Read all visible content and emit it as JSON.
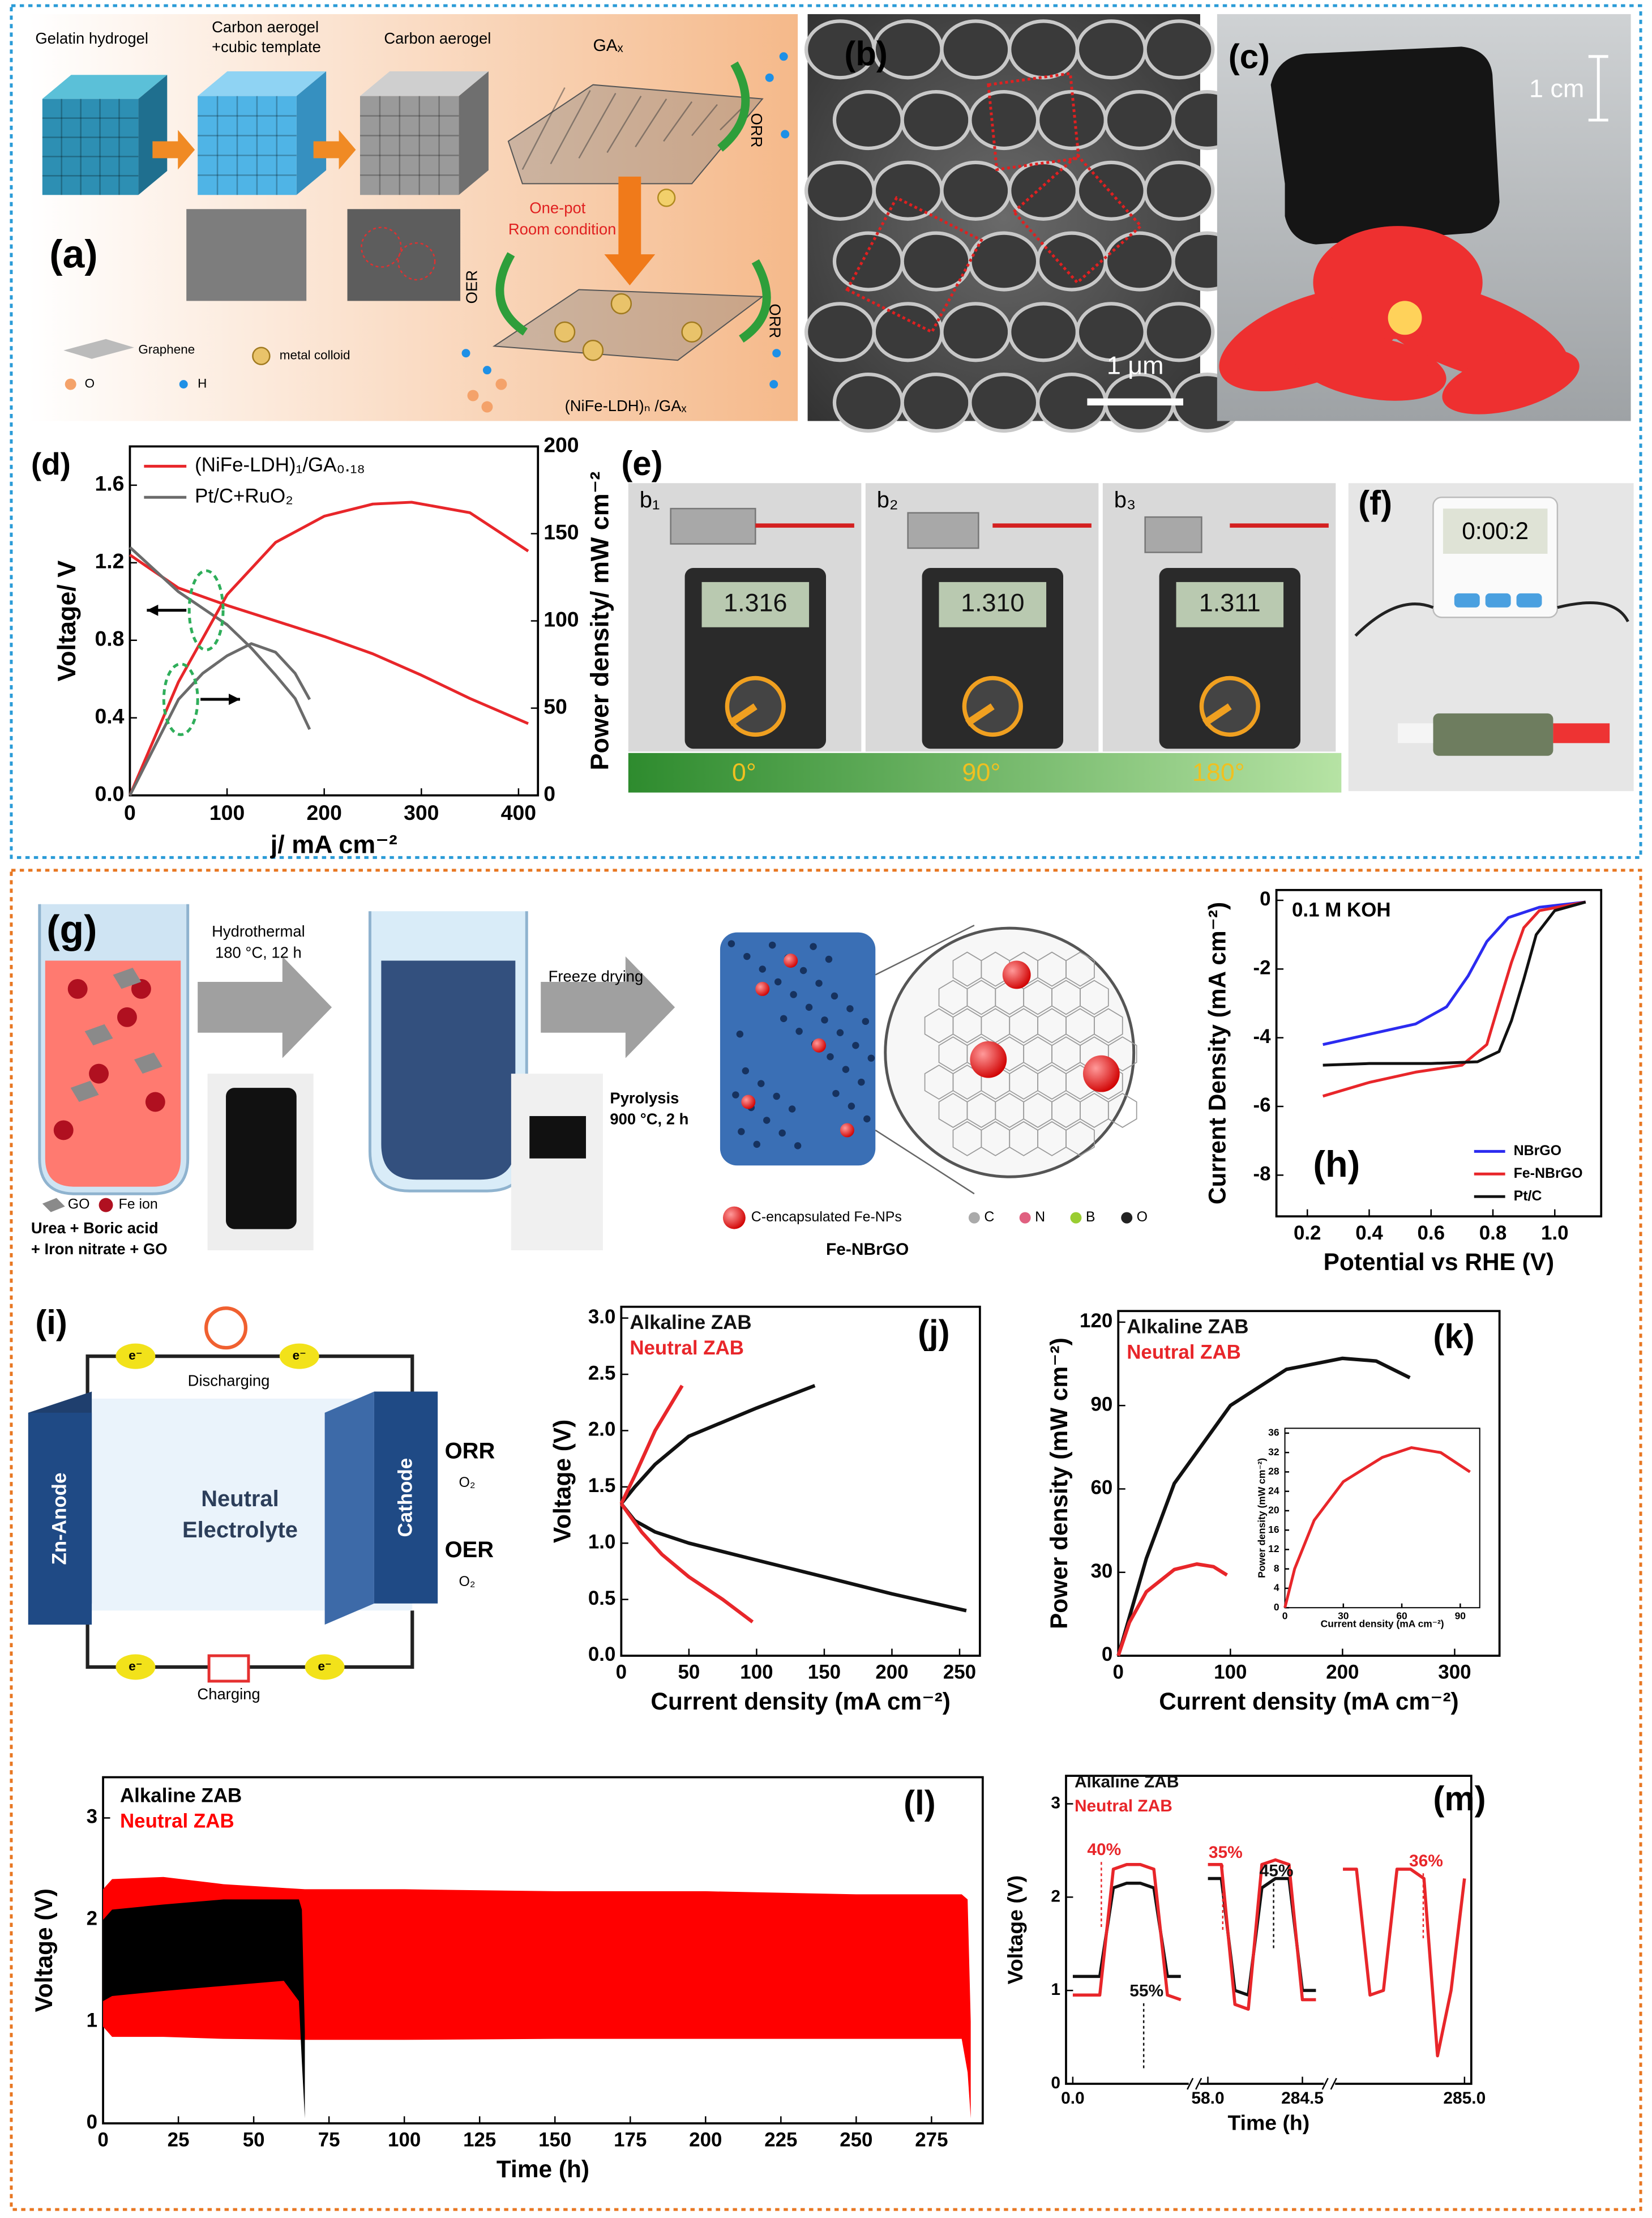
{
  "diagrams": {
    "a": {
      "label": "(a)",
      "gelatin": "Gelatin hydrogel",
      "template": [
        "Carbon aerogel",
        "+cubic template"
      ],
      "aerogel": "Carbon aerogel",
      "ga": "GAₓ",
      "orr_top": "ORR",
      "one_pot": [
        "One-pot",
        "Room condition"
      ],
      "oer": "OER",
      "orr_bottom": "ORR",
      "product": "(NiFe-LDH)ₙ /GAₓ",
      "legend": [
        "Graphene",
        "metal colloid",
        "O",
        "H"
      ]
    },
    "b": {
      "label": "(b)",
      "scale": "1 μm"
    },
    "c": {
      "label": "(c)",
      "scale": "1 cm"
    },
    "e": {
      "label": "(e)",
      "views": [
        "b₁",
        "b₂",
        "b₃"
      ],
      "readings": [
        "1.316",
        "1.310",
        "1.311"
      ],
      "angles": [
        "0°",
        "90°",
        "180°"
      ]
    },
    "f": {
      "label": "(f)",
      "timer": "0:00:2"
    },
    "g": {
      "label": "(g)",
      "step1": [
        "Hydrothermal",
        "180 °C, 12 h"
      ],
      "step2": "Freeze drying",
      "step3": [
        "Pyrolysis",
        "900 °C, 2 h"
      ],
      "legend_left": [
        "GO",
        "Fe ion"
      ],
      "precursors": [
        "Urea + Boric acid",
        "+ Iron nitrate + GO"
      ],
      "legend_right": [
        "C-encapsulated Fe-NPs",
        "C",
        "N",
        "B",
        "O"
      ],
      "product": "Fe-NBrGO"
    },
    "i": {
      "label": "(i)",
      "discharging": "Discharging",
      "charging": "Charging",
      "anode": "Zn-Anode",
      "electrolyte": [
        "Neutral",
        "Electrolyte"
      ],
      "cathode": "Cathode",
      "orr": "ORR",
      "oer": "OER",
      "o2": [
        "O₂",
        "O₂"
      ],
      "electron": [
        "e⁻",
        "e⁻",
        "e⁻",
        "e⁻"
      ]
    }
  },
  "chart_data": [
    {
      "type": "line",
      "label": "(d)",
      "xlabel": "j/ mA cm⁻²",
      "ylabel": "Voltage/ V",
      "y2label": "Power density/ mW cm⁻²",
      "xlim": [
        0,
        420
      ],
      "xticks": [
        0,
        100,
        200,
        300,
        400
      ],
      "ylim": [
        0,
        1.8
      ],
      "yticks": [
        {
          "value": 0,
          "label": "0.0"
        },
        0.4,
        0.8,
        1.2,
        1.6
      ],
      "y2lim": [
        0,
        200
      ],
      "y2ticks": [
        0,
        50,
        100,
        150,
        200
      ],
      "legend": "upper left",
      "series": [
        {
          "name": "(NiFe-LDH)₁/GA₀.₁₈",
          "color": "#e8262a",
          "x": [
            0,
            50,
            100,
            150,
            200,
            250,
            300,
            350,
            410
          ],
          "values": [
            1.24,
            1.07,
            0.98,
            0.9,
            0.82,
            0.73,
            0.62,
            0.5,
            0.37
          ]
        },
        {
          "name": "Pt/C+RuO₂",
          "color": "#6b6b6b",
          "x": [
            0,
            50,
            100,
            125,
            150,
            170,
            185
          ],
          "values": [
            1.28,
            1.05,
            0.88,
            0.76,
            0.62,
            0.5,
            0.34
          ]
        },
        {
          "color": "#e8262a",
          "axis": "y2",
          "x": [
            0,
            50,
            100,
            150,
            200,
            250,
            290,
            350,
            410
          ],
          "values": [
            0,
            65,
            115,
            145,
            160,
            167,
            168,
            162,
            140
          ]
        },
        {
          "color": "#6b6b6b",
          "axis": "y2",
          "x": [
            0,
            50,
            75,
            100,
            125,
            150,
            170,
            185
          ],
          "values": [
            0,
            55,
            70,
            80,
            87,
            82,
            70,
            55
          ]
        }
      ]
    },
    {
      "type": "line",
      "label": "(h)",
      "xlabel": "Potential vs RHE (V)",
      "ylabel": "Current Density (mA cm⁻²)",
      "annotations": [
        "0.1 M KOH"
      ],
      "xlim": [
        0.1,
        1.15
      ],
      "xticks": [
        0.2,
        0.4,
        0.6,
        0.8,
        {
          "value": 1,
          "label": "1.0"
        }
      ],
      "ylim": [
        -9.2,
        0.3
      ],
      "yticks": [
        0,
        -2,
        -4,
        -6,
        -8
      ],
      "legend": "lower right",
      "series": [
        {
          "name": "NBrGO",
          "color": "#2b2bf0",
          "x": [
            0.25,
            0.4,
            0.55,
            0.65,
            0.72,
            0.78,
            0.85,
            0.95,
            1.1
          ],
          "values": [
            -4.2,
            -3.9,
            -3.6,
            -3.1,
            -2.2,
            -1.2,
            -0.5,
            -0.2,
            -0.05
          ]
        },
        {
          "name": "Fe-NBrGO",
          "color": "#e8262a",
          "x": [
            0.25,
            0.4,
            0.55,
            0.7,
            0.78,
            0.82,
            0.86,
            0.9,
            0.95,
            1.1
          ],
          "values": [
            -5.7,
            -5.3,
            -5.0,
            -4.8,
            -4.2,
            -3.0,
            -1.8,
            -0.8,
            -0.3,
            -0.05
          ]
        },
        {
          "name": "Pt/C",
          "color": "#111111",
          "x": [
            0.25,
            0.4,
            0.6,
            0.75,
            0.82,
            0.86,
            0.9,
            0.94,
            1.0,
            1.1
          ],
          "values": [
            -4.8,
            -4.75,
            -4.75,
            -4.7,
            -4.4,
            -3.5,
            -2.3,
            -1.0,
            -0.3,
            -0.05
          ]
        }
      ]
    },
    {
      "type": "line",
      "label": "(j)",
      "xlabel": "Current density (mA cm⁻²)",
      "ylabel": "Voltage (V)",
      "xlim": [
        0,
        265
      ],
      "xticks": [
        0,
        50,
        100,
        150,
        200,
        250
      ],
      "ylim": [
        0,
        3.1
      ],
      "yticks": [
        {
          "value": 0,
          "label": "0.0"
        },
        0.5,
        {
          "value": 1,
          "label": "1.0"
        },
        1.5,
        {
          "value": 2,
          "label": "2.0"
        },
        2.5,
        {
          "value": 3,
          "label": "3.0"
        }
      ],
      "legend": "upper left",
      "series": [
        {
          "name": "Alkaline ZAB",
          "color": "#111111",
          "x": [
            0,
            10,
            25,
            50,
            100,
            143,
            null,
            0,
            10,
            25,
            50,
            100,
            150,
            200,
            255
          ],
          "values": [
            1.35,
            1.5,
            1.7,
            1.95,
            2.2,
            2.4,
            null,
            1.35,
            1.2,
            1.1,
            1.0,
            0.85,
            0.7,
            0.55,
            0.4
          ]
        },
        {
          "name": "Neutral ZAB",
          "color": "#e8262a",
          "x": [
            0,
            10,
            25,
            45,
            null,
            0,
            15,
            30,
            50,
            75,
            97
          ],
          "values": [
            1.35,
            1.6,
            2.0,
            2.4,
            null,
            1.35,
            1.1,
            0.9,
            0.7,
            0.5,
            0.3
          ]
        }
      ]
    },
    {
      "type": "line",
      "label": "(k)",
      "xlabel": "Current density (mA cm⁻²)",
      "ylabel": "Power density (mW cm⁻²)",
      "xlim": [
        0,
        340
      ],
      "xticks": [
        0,
        100,
        200,
        300
      ],
      "ylim": [
        0,
        124
      ],
      "yticks": [
        0,
        30,
        60,
        90,
        120
      ],
      "legend": "upper left",
      "series": [
        {
          "name": "Alkaline ZAB",
          "color": "#111111",
          "x": [
            0,
            25,
            50,
            100,
            150,
            200,
            230,
            260
          ],
          "values": [
            0,
            35,
            62,
            90,
            103,
            107,
            106,
            100
          ]
        },
        {
          "name": "Neutral ZAB",
          "color": "#e8262a",
          "x": [
            0,
            10,
            25,
            50,
            70,
            85,
            97
          ],
          "values": [
            0,
            12,
            23,
            31,
            33,
            32,
            29
          ]
        }
      ]
    },
    {
      "type": "line",
      "xlabel": "Current density (mA cm⁻²)",
      "ylabel": "Power density (mW cm⁻²)",
      "xlim": [
        0,
        100
      ],
      "xticks": [
        0,
        30,
        60,
        90
      ],
      "ylim": [
        0,
        37
      ],
      "yticks": [
        0,
        4,
        8,
        12,
        16,
        20,
        24,
        28,
        32,
        36
      ],
      "series": [
        {
          "color": "#e8262a",
          "x": [
            0,
            5,
            15,
            30,
            50,
            65,
            80,
            95
          ],
          "values": [
            0,
            8,
            18,
            26,
            31,
            33,
            32,
            28
          ]
        }
      ]
    },
    {
      "type": "range_area",
      "label": "(l)",
      "xlabel": "Time (h)",
      "ylabel": "Voltage (V)",
      "xlim": [
        0,
        292
      ],
      "xticks": [
        0,
        25,
        50,
        75,
        100,
        125,
        150,
        175,
        200,
        225,
        250,
        275
      ],
      "ylim": [
        0,
        3.4
      ],
      "yticks": [
        0,
        1,
        2,
        3
      ],
      "legend": "upper left",
      "series": [
        {
          "name": "Alkaline ZAB",
          "color": "#000000",
          "x": [
            0,
            3,
            20,
            40,
            60,
            65,
            66,
            67
          ],
          "high": [
            2.0,
            2.1,
            2.15,
            2.2,
            2.2,
            2.2,
            2.1,
            0.9
          ],
          "low": [
            1.2,
            1.25,
            1.3,
            1.35,
            1.4,
            1.2,
            0.6,
            0.05
          ]
        },
        {
          "name": "Neutral ZAB",
          "color": "#ff0000",
          "x": [
            0,
            3,
            20,
            40,
            67,
            70,
            100,
            150,
            200,
            250,
            285,
            287,
            288
          ],
          "high": [
            2.3,
            2.4,
            2.42,
            2.35,
            2.3,
            2.3,
            2.3,
            2.28,
            2.28,
            2.25,
            2.25,
            2.2,
            1.0
          ],
          "low": [
            0.95,
            0.85,
            0.85,
            0.83,
            0.82,
            0.82,
            0.82,
            0.83,
            0.83,
            0.83,
            0.83,
            0.5,
            0.05
          ]
        }
      ]
    },
    {
      "type": "line",
      "label": "(m)",
      "xlabel": "Time (h)",
      "ylabel": "Voltage (V)",
      "annotations": [
        "40%",
        "55%",
        "35%",
        "45%",
        "36%"
      ],
      "categories": [
        "0.0",
        null,
        null,
        null,
        null,
        null,
        null,
        null,
        null,
        null,
        "58.0",
        null,
        null,
        null,
        null,
        null,
        null,
        "284.5",
        null,
        null,
        null,
        null,
        null,
        null,
        null,
        null,
        null,
        null,
        null,
        "285.0"
      ],
      "ylim": [
        0,
        3.3
      ],
      "yticks": [
        0,
        1,
        2,
        3
      ],
      "legend": "upper left",
      "series": [
        {
          "name": "Alkaline ZAB",
          "color": "#111111",
          "values": [
            1.15,
            1.15,
            1.15,
            2.1,
            2.15,
            2.15,
            2.1,
            1.15,
            1.15,
            null,
            2.2,
            2.2,
            1.0,
            0.95,
            2.1,
            2.2,
            2.2,
            1.0,
            1.0,
            null,
            null,
            null,
            null,
            null,
            null,
            null,
            null,
            null,
            null,
            null
          ]
        },
        {
          "name": "Neutral ZAB",
          "color": "#e8262a",
          "values": [
            0.95,
            0.95,
            0.95,
            2.3,
            2.35,
            2.35,
            2.3,
            0.95,
            0.9,
            null,
            2.35,
            2.35,
            0.85,
            0.8,
            2.35,
            2.4,
            2.35,
            0.9,
            0.9,
            null,
            2.3,
            2.3,
            0.95,
            1.0,
            2.3,
            2.3,
            2.2,
            0.3,
            1.0,
            2.2
          ]
        }
      ]
    }
  ]
}
